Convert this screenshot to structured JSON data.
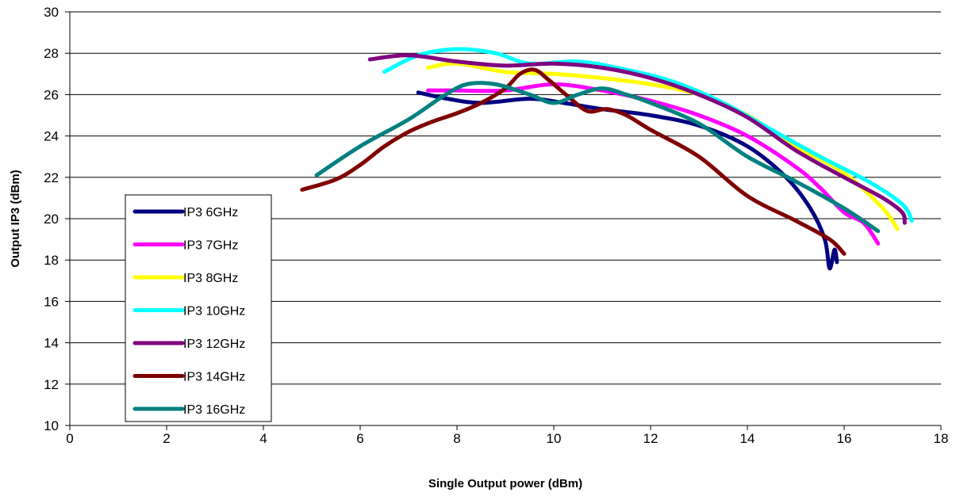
{
  "chart_data": {
    "type": "line",
    "title": "",
    "xlabel": "Single Output power (dBm)",
    "ylabel": "Output IP3 (dBm)",
    "xlim": [
      0,
      18
    ],
    "ylim": [
      10,
      30
    ],
    "xticks": [
      0,
      2,
      4,
      6,
      8,
      10,
      12,
      14,
      16,
      18
    ],
    "yticks": [
      10,
      12,
      14,
      16,
      18,
      20,
      22,
      24,
      26,
      28,
      30
    ],
    "grid": "horizontal",
    "legend_position": "left",
    "series": [
      {
        "name": "IP3 6GHz",
        "color": "#000080",
        "points": [
          [
            7.2,
            26.1
          ],
          [
            7.8,
            25.8
          ],
          [
            8.5,
            25.6
          ],
          [
            9.5,
            25.8
          ],
          [
            10.2,
            25.6
          ],
          [
            11,
            25.3
          ],
          [
            12,
            25.0
          ],
          [
            13,
            24.5
          ],
          [
            14,
            23.5
          ],
          [
            14.8,
            22.0
          ],
          [
            15.3,
            20.5
          ],
          [
            15.6,
            19.0
          ],
          [
            15.7,
            17.6
          ],
          [
            15.8,
            18.5
          ],
          [
            15.85,
            17.9
          ]
        ]
      },
      {
        "name": "IP3 7GHz",
        "color": "#FF00FF",
        "points": [
          [
            7.4,
            26.2
          ],
          [
            8,
            26.2
          ],
          [
            9,
            26.2
          ],
          [
            10,
            26.5
          ],
          [
            11,
            26.2
          ],
          [
            12,
            25.7
          ],
          [
            13,
            25.0
          ],
          [
            14,
            24.0
          ],
          [
            15,
            22.5
          ],
          [
            15.5,
            21.5
          ],
          [
            16,
            20.3
          ],
          [
            16.4,
            19.8
          ],
          [
            16.7,
            18.8
          ]
        ]
      },
      {
        "name": "IP3 8GHz",
        "color": "#FFFF00",
        "points": [
          [
            7.4,
            27.3
          ],
          [
            8,
            27.5
          ],
          [
            9,
            27.1
          ],
          [
            10,
            27.0
          ],
          [
            11,
            26.8
          ],
          [
            12,
            26.5
          ],
          [
            13,
            26.0
          ],
          [
            14,
            25.0
          ],
          [
            15,
            23.5
          ],
          [
            16,
            22.2
          ],
          [
            16.8,
            20.5
          ],
          [
            17.1,
            19.5
          ]
        ]
      },
      {
        "name": "IP3 10GHz",
        "color": "#00FFFF",
        "points": [
          [
            6.5,
            27.1
          ],
          [
            7.2,
            27.9
          ],
          [
            8,
            28.2
          ],
          [
            8.8,
            28.0
          ],
          [
            9.5,
            27.5
          ],
          [
            10.5,
            27.6
          ],
          [
            11.5,
            27.2
          ],
          [
            12.5,
            26.6
          ],
          [
            13.5,
            25.6
          ],
          [
            14.5,
            24.3
          ],
          [
            15.5,
            23.0
          ],
          [
            16.5,
            21.8
          ],
          [
            17.2,
            20.7
          ],
          [
            17.4,
            19.9
          ]
        ]
      },
      {
        "name": "IP3 12GHz",
        "color": "#800080",
        "points": [
          [
            6.2,
            27.7
          ],
          [
            7,
            27.9
          ],
          [
            8,
            27.6
          ],
          [
            9,
            27.4
          ],
          [
            10,
            27.5
          ],
          [
            11,
            27.3
          ],
          [
            12,
            26.8
          ],
          [
            13,
            26.0
          ],
          [
            14,
            24.9
          ],
          [
            15,
            23.3
          ],
          [
            16,
            22.0
          ],
          [
            16.8,
            21.0
          ],
          [
            17.2,
            20.3
          ],
          [
            17.25,
            19.8
          ]
        ]
      },
      {
        "name": "IP3 14GHz",
        "color": "#800000",
        "points": [
          [
            4.8,
            21.4
          ],
          [
            5.5,
            21.9
          ],
          [
            6,
            22.6
          ],
          [
            6.5,
            23.5
          ],
          [
            7,
            24.2
          ],
          [
            7.5,
            24.7
          ],
          [
            8,
            25.1
          ],
          [
            8.5,
            25.6
          ],
          [
            9,
            26.3
          ],
          [
            9.3,
            27.0
          ],
          [
            9.6,
            27.2
          ],
          [
            9.9,
            26.7
          ],
          [
            10.3,
            25.9
          ],
          [
            10.7,
            25.2
          ],
          [
            11.1,
            25.3
          ],
          [
            11.5,
            25.0
          ],
          [
            12,
            24.3
          ],
          [
            13,
            23.0
          ],
          [
            14,
            21.1
          ],
          [
            15,
            19.9
          ],
          [
            15.7,
            19.0
          ],
          [
            16,
            18.3
          ]
        ]
      },
      {
        "name": "IP3 16GHz",
        "color": "#008080",
        "points": [
          [
            5.1,
            22.1
          ],
          [
            6,
            23.5
          ],
          [
            7,
            24.8
          ],
          [
            7.7,
            25.9
          ],
          [
            8.2,
            26.5
          ],
          [
            8.8,
            26.5
          ],
          [
            9.5,
            26.0
          ],
          [
            10,
            25.6
          ],
          [
            10.5,
            26.0
          ],
          [
            11,
            26.3
          ],
          [
            11.5,
            26.0
          ],
          [
            12,
            25.6
          ],
          [
            13,
            24.6
          ],
          [
            14,
            23.0
          ],
          [
            15,
            21.8
          ],
          [
            16,
            20.5
          ],
          [
            16.7,
            19.4
          ]
        ]
      }
    ]
  }
}
